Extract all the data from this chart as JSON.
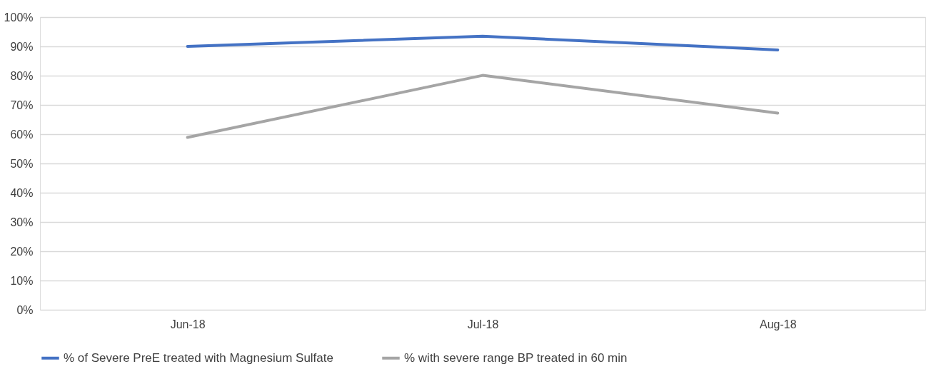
{
  "chart_data": {
    "type": "line",
    "categories": [
      "Jun-18",
      "Jul-18",
      "Aug-18"
    ],
    "series": [
      {
        "name": "% of Severe PreE treated with Magnesium Sulfate",
        "color": "#4472c4",
        "values": [
          90.0,
          93.5,
          88.8
        ]
      },
      {
        "name": "% with severe range BP treated in 60 min",
        "color": "#a5a5a5",
        "values": [
          58.9,
          80.1,
          67.2
        ]
      }
    ],
    "ylim": [
      0,
      100
    ],
    "yticks": [
      {
        "value": 0,
        "label": "0%"
      },
      {
        "value": 10,
        "label": "10%"
      },
      {
        "value": 20,
        "label": "20%"
      },
      {
        "value": 30,
        "label": "30%"
      },
      {
        "value": 40,
        "label": "40%"
      },
      {
        "value": 50,
        "label": "50%"
      },
      {
        "value": 60,
        "label": "60%"
      },
      {
        "value": 70,
        "label": "70%"
      },
      {
        "value": 80,
        "label": "80%"
      },
      {
        "value": 90,
        "label": "90%"
      },
      {
        "value": 100,
        "label": "100%"
      }
    ],
    "grid": "y",
    "legend": "bottom",
    "marker": "none",
    "line_style": "solid"
  }
}
